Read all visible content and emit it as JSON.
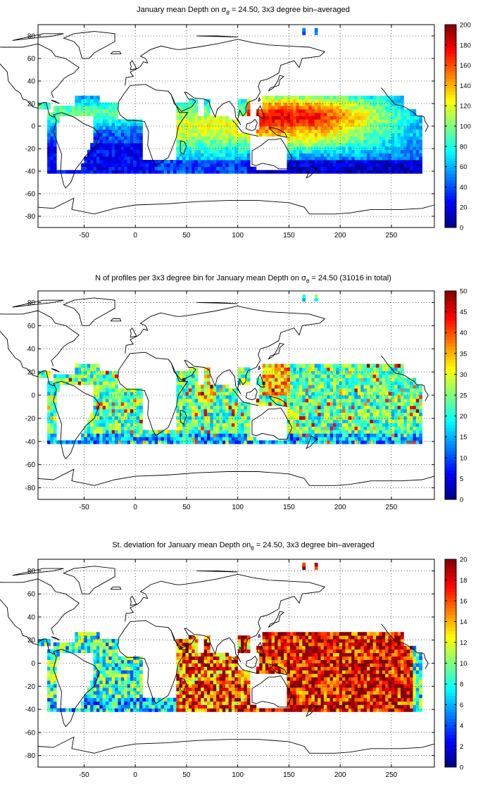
{
  "chart_data": [
    {
      "type": "heatmap",
      "title": "January mean Depth on σθ = 24.50, 3x3 degree bin–averaged",
      "title_parts": [
        "January mean Depth on σ",
        "θ",
        " = 24.50, 3x3 degree bin–averaged"
      ],
      "x_ticks": [
        -50,
        0,
        50,
        100,
        150,
        200,
        250
      ],
      "y_ticks": [
        -80,
        -60,
        -40,
        -20,
        0,
        20,
        40,
        60,
        80
      ],
      "xlim": [
        -95,
        292
      ],
      "ylim": [
        -90,
        90
      ],
      "grid": true,
      "colorbar": {
        "range": [
          0,
          200
        ],
        "ticks": [
          0,
          20,
          40,
          60,
          80,
          100,
          120,
          140,
          160,
          180,
          200
        ],
        "colormap": "jet"
      },
      "bin_size_deg": 3,
      "field": "depth"
    },
    {
      "type": "heatmap",
      "title": "N of profiles per 3x3 degree bin for January mean Depth on σθ = 24.50 (31016 in total)",
      "title_parts": [
        "N of profiles per 3x3 degree bin for January mean Depth on σ",
        "θ",
        " = 24.50 (31016 in total)"
      ],
      "total_profiles": 31016,
      "x_ticks": [
        -50,
        0,
        50,
        100,
        150,
        200,
        250
      ],
      "y_ticks": [
        -80,
        -60,
        -40,
        -20,
        0,
        20,
        40,
        60,
        80
      ],
      "xlim": [
        -95,
        292
      ],
      "ylim": [
        -90,
        90
      ],
      "grid": true,
      "colorbar": {
        "range": [
          0,
          50
        ],
        "ticks": [
          0,
          5,
          10,
          15,
          20,
          25,
          30,
          35,
          40,
          45,
          50
        ],
        "colormap": "jet"
      },
      "bin_size_deg": 3,
      "field": "count"
    },
    {
      "type": "heatmap",
      "title": "St. deviation for January mean Depth onσθ = 24.50, 3x3 degree bin–averaged",
      "title_parts": [
        "St. deviation for January mean Depth on",
        "θ",
        " = 24.50, 3x3 degree bin–averaged"
      ],
      "x_ticks": [
        -50,
        0,
        50,
        100,
        150,
        200,
        250
      ],
      "y_ticks": [
        -80,
        -60,
        -40,
        -20,
        0,
        20,
        40,
        60,
        80
      ],
      "xlim": [
        -95,
        292
      ],
      "ylim": [
        -90,
        90
      ],
      "grid": true,
      "colorbar": {
        "range": [
          0,
          20
        ],
        "ticks": [
          0,
          2,
          4,
          6,
          8,
          10,
          12,
          14,
          16,
          18,
          20
        ],
        "colormap": "jet"
      },
      "bin_size_deg": 3,
      "field": "std"
    }
  ]
}
